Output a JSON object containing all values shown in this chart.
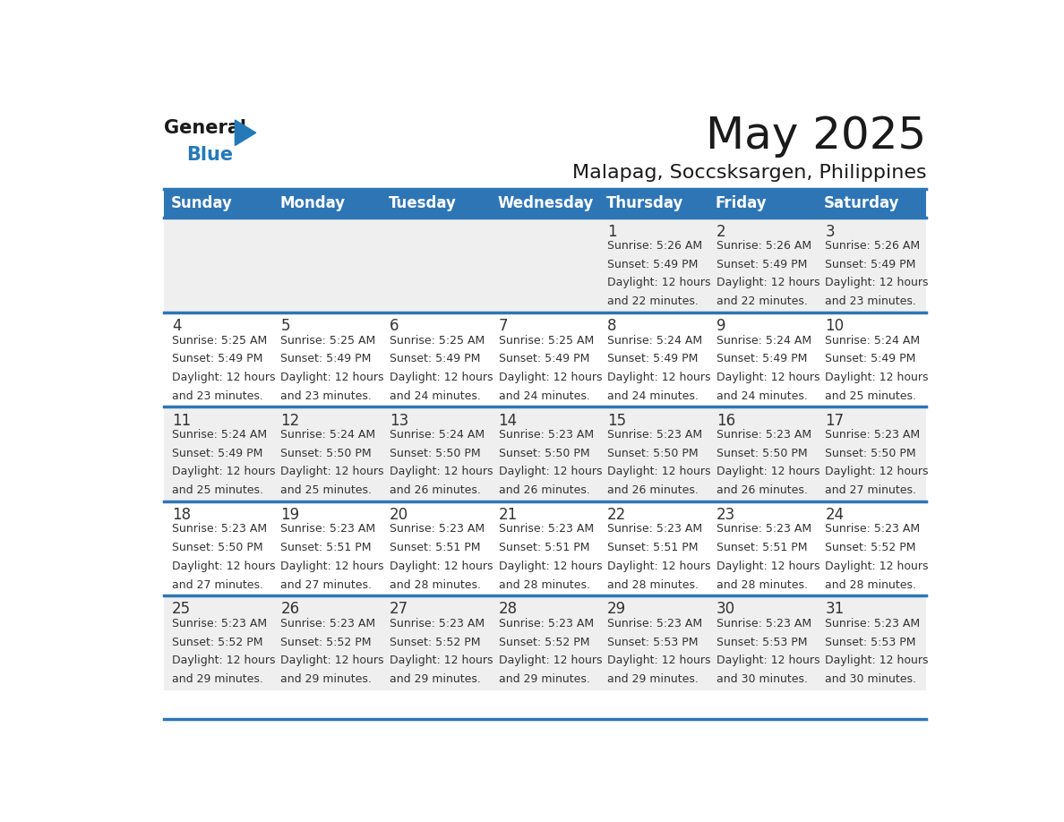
{
  "title": "May 2025",
  "subtitle": "Malapag, Soccsksargen, Philippines",
  "header_bg": "#2E75B6",
  "header_text_color": "#FFFFFF",
  "days_of_week": [
    "Sunday",
    "Monday",
    "Tuesday",
    "Wednesday",
    "Thursday",
    "Friday",
    "Saturday"
  ],
  "cell_bg_gray": "#EFEFEF",
  "cell_bg_white": "#FFFFFF",
  "cell_text_color": "#333333",
  "day_num_color": "#333333",
  "separator_color": "#2E75B6",
  "calendar": [
    [
      {
        "day": null,
        "sunrise": null,
        "sunset": null,
        "daylight": null
      },
      {
        "day": null,
        "sunrise": null,
        "sunset": null,
        "daylight": null
      },
      {
        "day": null,
        "sunrise": null,
        "sunset": null,
        "daylight": null
      },
      {
        "day": null,
        "sunrise": null,
        "sunset": null,
        "daylight": null
      },
      {
        "day": 1,
        "sunrise": "5:26 AM",
        "sunset": "5:49 PM",
        "daylight": "12 hours and 22 minutes."
      },
      {
        "day": 2,
        "sunrise": "5:26 AM",
        "sunset": "5:49 PM",
        "daylight": "12 hours and 22 minutes."
      },
      {
        "day": 3,
        "sunrise": "5:26 AM",
        "sunset": "5:49 PM",
        "daylight": "12 hours and 23 minutes."
      }
    ],
    [
      {
        "day": 4,
        "sunrise": "5:25 AM",
        "sunset": "5:49 PM",
        "daylight": "12 hours and 23 minutes."
      },
      {
        "day": 5,
        "sunrise": "5:25 AM",
        "sunset": "5:49 PM",
        "daylight": "12 hours and 23 minutes."
      },
      {
        "day": 6,
        "sunrise": "5:25 AM",
        "sunset": "5:49 PM",
        "daylight": "12 hours and 24 minutes."
      },
      {
        "day": 7,
        "sunrise": "5:25 AM",
        "sunset": "5:49 PM",
        "daylight": "12 hours and 24 minutes."
      },
      {
        "day": 8,
        "sunrise": "5:24 AM",
        "sunset": "5:49 PM",
        "daylight": "12 hours and 24 minutes."
      },
      {
        "day": 9,
        "sunrise": "5:24 AM",
        "sunset": "5:49 PM",
        "daylight": "12 hours and 24 minutes."
      },
      {
        "day": 10,
        "sunrise": "5:24 AM",
        "sunset": "5:49 PM",
        "daylight": "12 hours and 25 minutes."
      }
    ],
    [
      {
        "day": 11,
        "sunrise": "5:24 AM",
        "sunset": "5:49 PM",
        "daylight": "12 hours and 25 minutes."
      },
      {
        "day": 12,
        "sunrise": "5:24 AM",
        "sunset": "5:50 PM",
        "daylight": "12 hours and 25 minutes."
      },
      {
        "day": 13,
        "sunrise": "5:24 AM",
        "sunset": "5:50 PM",
        "daylight": "12 hours and 26 minutes."
      },
      {
        "day": 14,
        "sunrise": "5:23 AM",
        "sunset": "5:50 PM",
        "daylight": "12 hours and 26 minutes."
      },
      {
        "day": 15,
        "sunrise": "5:23 AM",
        "sunset": "5:50 PM",
        "daylight": "12 hours and 26 minutes."
      },
      {
        "day": 16,
        "sunrise": "5:23 AM",
        "sunset": "5:50 PM",
        "daylight": "12 hours and 26 minutes."
      },
      {
        "day": 17,
        "sunrise": "5:23 AM",
        "sunset": "5:50 PM",
        "daylight": "12 hours and 27 minutes."
      }
    ],
    [
      {
        "day": 18,
        "sunrise": "5:23 AM",
        "sunset": "5:50 PM",
        "daylight": "12 hours and 27 minutes."
      },
      {
        "day": 19,
        "sunrise": "5:23 AM",
        "sunset": "5:51 PM",
        "daylight": "12 hours and 27 minutes."
      },
      {
        "day": 20,
        "sunrise": "5:23 AM",
        "sunset": "5:51 PM",
        "daylight": "12 hours and 28 minutes."
      },
      {
        "day": 21,
        "sunrise": "5:23 AM",
        "sunset": "5:51 PM",
        "daylight": "12 hours and 28 minutes."
      },
      {
        "day": 22,
        "sunrise": "5:23 AM",
        "sunset": "5:51 PM",
        "daylight": "12 hours and 28 minutes."
      },
      {
        "day": 23,
        "sunrise": "5:23 AM",
        "sunset": "5:51 PM",
        "daylight": "12 hours and 28 minutes."
      },
      {
        "day": 24,
        "sunrise": "5:23 AM",
        "sunset": "5:52 PM",
        "daylight": "12 hours and 28 minutes."
      }
    ],
    [
      {
        "day": 25,
        "sunrise": "5:23 AM",
        "sunset": "5:52 PM",
        "daylight": "12 hours and 29 minutes."
      },
      {
        "day": 26,
        "sunrise": "5:23 AM",
        "sunset": "5:52 PM",
        "daylight": "12 hours and 29 minutes."
      },
      {
        "day": 27,
        "sunrise": "5:23 AM",
        "sunset": "5:52 PM",
        "daylight": "12 hours and 29 minutes."
      },
      {
        "day": 28,
        "sunrise": "5:23 AM",
        "sunset": "5:52 PM",
        "daylight": "12 hours and 29 minutes."
      },
      {
        "day": 29,
        "sunrise": "5:23 AM",
        "sunset": "5:53 PM",
        "daylight": "12 hours and 29 minutes."
      },
      {
        "day": 30,
        "sunrise": "5:23 AM",
        "sunset": "5:53 PM",
        "daylight": "12 hours and 30 minutes."
      },
      {
        "day": 31,
        "sunrise": "5:23 AM",
        "sunset": "5:53 PM",
        "daylight": "12 hours and 30 minutes."
      }
    ]
  ],
  "logo_text1": "General",
  "logo_text2": "Blue",
  "logo_color1": "#1A1A1A",
  "logo_color2": "#2479B8",
  "logo_triangle_color": "#2479B8",
  "title_fontsize": 36,
  "subtitle_fontsize": 16,
  "header_fontsize": 12,
  "daynum_fontsize": 12,
  "cell_fontsize": 9
}
